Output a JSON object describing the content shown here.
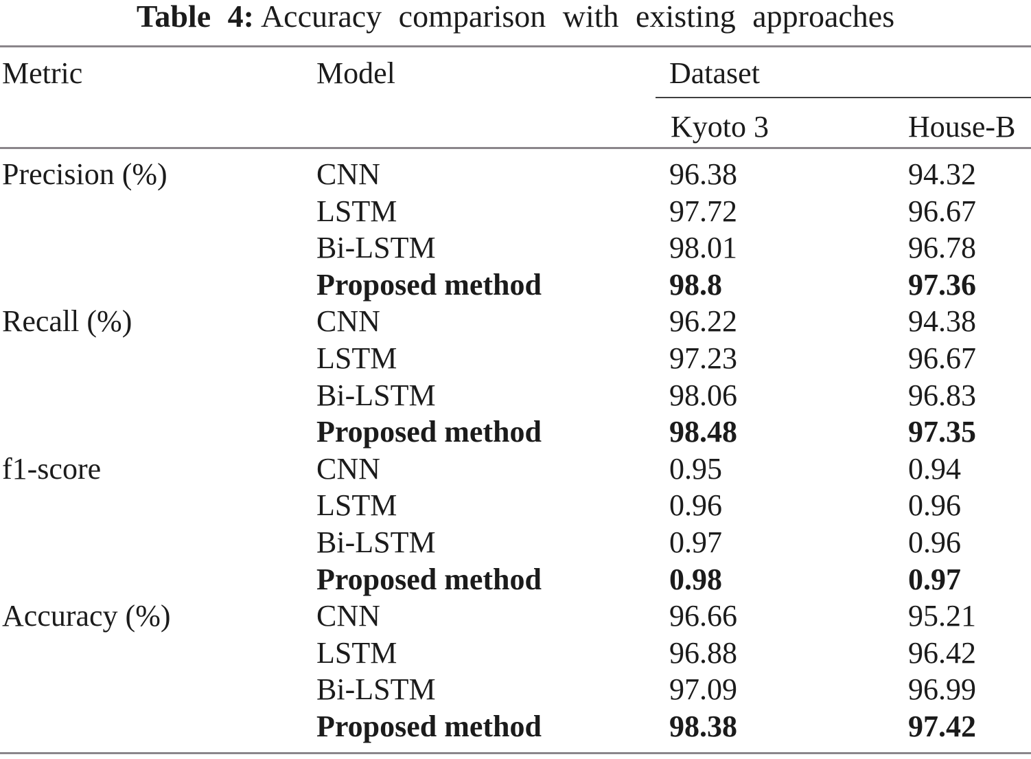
{
  "caption": {
    "prefix": "Table 4:",
    "text": "Accuracy comparison with existing approaches"
  },
  "headers": {
    "metric": "Metric",
    "model": "Model",
    "dataset_group": "Dataset",
    "dataset_columns": [
      "Kyoto 3",
      "House-B"
    ]
  },
  "rows": [
    {
      "metric": "Precision (%)",
      "model": "CNN",
      "kyoto3": "96.38",
      "houseb": "94.32"
    },
    {
      "metric": "",
      "model": "LSTM",
      "kyoto3": "97.72",
      "houseb": "96.67"
    },
    {
      "metric": "",
      "model": "Bi-LSTM",
      "kyoto3": "98.01",
      "houseb": "96.78"
    },
    {
      "metric": "",
      "model": "Proposed method",
      "kyoto3": "98.8",
      "houseb": "97.36"
    },
    {
      "metric": "Recall (%)",
      "model": "CNN",
      "kyoto3": "96.22",
      "houseb": "94.38"
    },
    {
      "metric": "",
      "model": "LSTM",
      "kyoto3": "97.23",
      "houseb": "96.67"
    },
    {
      "metric": "",
      "model": "Bi-LSTM",
      "kyoto3": "98.06",
      "houseb": "96.83"
    },
    {
      "metric": "",
      "model": "Proposed method",
      "kyoto3": "98.48",
      "houseb": "97.35"
    },
    {
      "metric": "f1-score",
      "model": "CNN",
      "kyoto3": "0.95",
      "houseb": "0.94"
    },
    {
      "metric": "",
      "model": "LSTM",
      "kyoto3": "0.96",
      "houseb": "0.96"
    },
    {
      "metric": "",
      "model": "Bi-LSTM",
      "kyoto3": "0.97",
      "houseb": "0.96"
    },
    {
      "metric": "",
      "model": "Proposed method",
      "kyoto3": "0.98",
      "houseb": "0.97"
    },
    {
      "metric": "Accuracy (%)",
      "model": "CNN",
      "kyoto3": "96.66",
      "houseb": "95.21"
    },
    {
      "metric": "",
      "model": "LSTM",
      "kyoto3": "96.88",
      "houseb": "96.42"
    },
    {
      "metric": "",
      "model": "Bi-LSTM",
      "kyoto3": "97.09",
      "houseb": "96.99"
    },
    {
      "metric": "",
      "model": "Proposed method",
      "kyoto3": "98.38",
      "houseb": "97.42"
    }
  ],
  "colors": {
    "text": "#1b1b1b",
    "rule_gray": "#8a858a",
    "rule_dark": "#3f3f3f",
    "background": "#ffffff"
  }
}
